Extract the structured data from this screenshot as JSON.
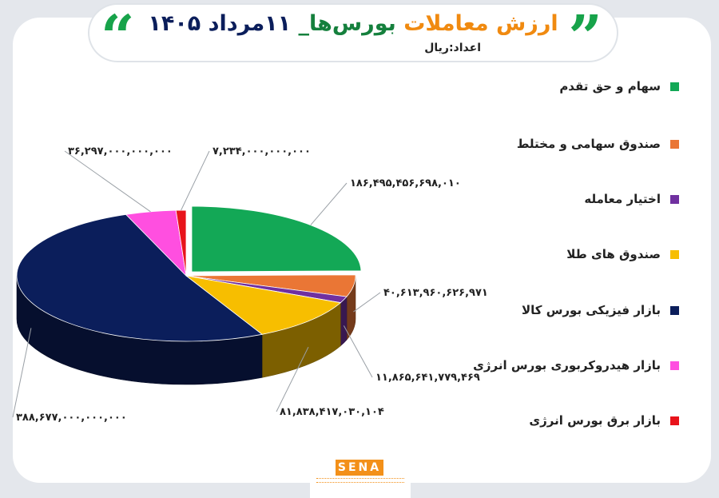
{
  "header": {
    "title_part1": "ارزش معاملات",
    "title_part2": "بورس‌ها_",
    "title_part3": "۱۱مرداد ۱۴۰۵",
    "subtitle": "اعداد:ریال"
  },
  "colors": {
    "title_orange": "#f08a10",
    "title_green": "#15803d",
    "title_navy": "#0b1e5b"
  },
  "branding": {
    "logo_text": "SENA"
  },
  "chart_data": {
    "type": "pie",
    "style": "3d-exploded-first-slice",
    "legend_position": "right",
    "categories": [
      "سهام و حق تقدم",
      "صندوق سهامی و مختلط",
      "اختیار معامله",
      "صندوق های طلا",
      "بازار فیزیکی بورس کالا",
      "بازار هیدروکربوری بورس انرژی",
      "بازار برق بورس انرژی"
    ],
    "values": [
      186495456698010,
      40613960626971,
      11865641779469,
      81838417030104,
      388677000000000,
      36297000000000,
      7234000000000
    ],
    "value_labels": [
      "۱۸۶,۴۹۵,۴۵۶,۶۹۸,۰۱۰",
      "۴۰,۶۱۳,۹۶۰,۶۲۶,۹۷۱",
      "۱۱,۸۶۵,۶۴۱,۷۷۹,۴۶۹",
      "۸۱,۸۳۸,۴۱۷,۰۳۰,۱۰۴",
      "۳۸۸,۶۷۷,۰۰۰,۰۰۰,۰۰۰",
      "۳۶,۲۹۷,۰۰۰,۰۰۰,۰۰۰",
      "۷,۲۳۴,۰۰۰,۰۰۰,۰۰۰"
    ],
    "colors": [
      "#13a856",
      "#ea7635",
      "#7030a0",
      "#f7be00",
      "#0b1e5b",
      "#ff4fe0",
      "#e8131b"
    ]
  }
}
